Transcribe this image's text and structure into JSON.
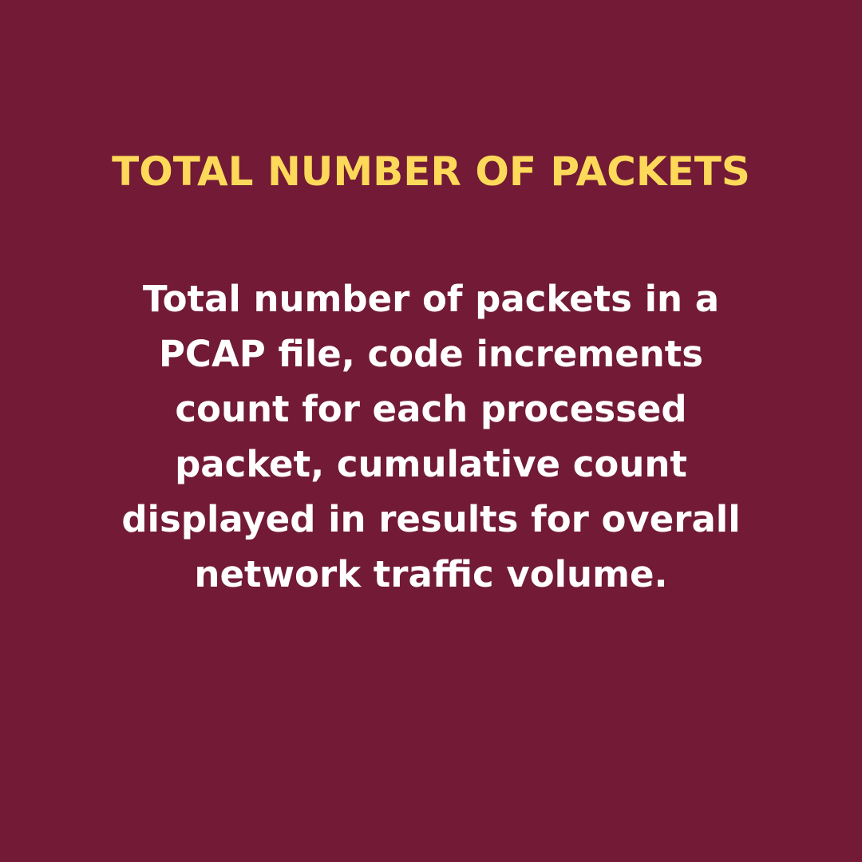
{
  "colors": {
    "background": "#721A36",
    "title": "#FDD95A",
    "body": "#FFFFFF"
  },
  "heading": "TOTAL NUMBER OF PACKETS",
  "body_lines": [
    "Total number of packets in a",
    "PCAP file, code increments",
    "count for each processed",
    "packet, cumulative count",
    "displayed in results for overall",
    "network traffic volume."
  ]
}
